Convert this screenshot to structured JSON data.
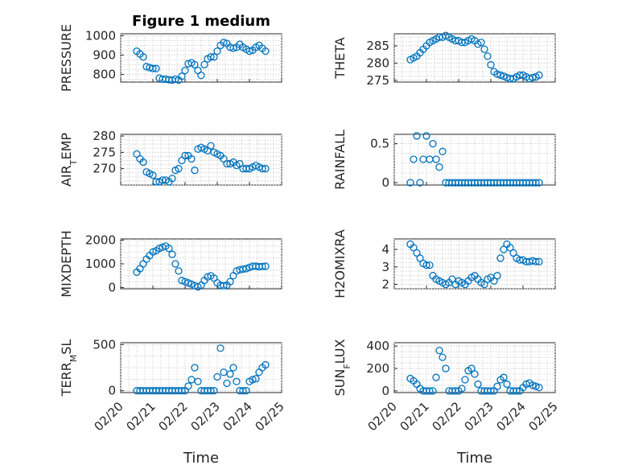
{
  "figure_title": "Figure 1 medium",
  "x_label": "Time",
  "x_ticks": [
    "02/20",
    "02/21",
    "02/22",
    "02/23",
    "02/24",
    "02/25"
  ],
  "marker_color": "#0072BD",
  "chart_data": [
    {
      "type": "scatter",
      "ylabel_main": "PRESSURE",
      "ylabel_sub": "",
      "ylabel_tail": "",
      "yticks": [
        "800",
        "900",
        "1000"
      ],
      "ylim": [
        760,
        1010
      ],
      "xlim": [
        0,
        5
      ],
      "x": [
        0.5,
        0.6,
        0.7,
        0.8,
        0.9,
        1.0,
        1.1,
        1.2,
        1.3,
        1.4,
        1.5,
        1.6,
        1.7,
        1.8,
        1.9,
        2.0,
        2.1,
        2.2,
        2.3,
        2.4,
        2.5,
        2.6,
        2.7,
        2.8,
        2.9,
        3.0,
        3.1,
        3.2,
        3.3,
        3.4,
        3.5,
        3.6,
        3.7,
        3.8,
        3.9,
        4.0,
        4.1,
        4.2,
        4.3,
        4.4,
        4.5
      ],
      "y": [
        920,
        905,
        890,
        840,
        835,
        830,
        830,
        780,
        775,
        775,
        772,
        770,
        775,
        770,
        790,
        820,
        855,
        860,
        850,
        820,
        795,
        850,
        880,
        890,
        890,
        920,
        950,
        965,
        960,
        940,
        935,
        940,
        955,
        940,
        930,
        920,
        925,
        940,
        950,
        935,
        920
      ]
    },
    {
      "type": "scatter",
      "ylabel_main": "THETA",
      "ylabel_sub": "",
      "ylabel_tail": "",
      "yticks": [
        "275",
        "280",
        "285"
      ],
      "ylim": [
        274.5,
        288.5
      ],
      "xlim": [
        0,
        5
      ],
      "x": [
        0.5,
        0.6,
        0.7,
        0.8,
        0.9,
        1.0,
        1.1,
        1.2,
        1.3,
        1.4,
        1.5,
        1.6,
        1.7,
        1.8,
        1.9,
        2.0,
        2.1,
        2.2,
        2.3,
        2.4,
        2.5,
        2.6,
        2.7,
        2.8,
        2.9,
        3.0,
        3.1,
        3.2,
        3.3,
        3.4,
        3.5,
        3.6,
        3.7,
        3.8,
        3.9,
        4.0,
        4.1,
        4.2,
        4.3,
        4.4,
        4.5
      ],
      "y": [
        281,
        281.5,
        282,
        283,
        284,
        285,
        286,
        286.5,
        287,
        287.5,
        287.5,
        288,
        287.5,
        287,
        286.5,
        286.5,
        286,
        286,
        286.5,
        287,
        286.5,
        285.5,
        286,
        284,
        282,
        279.5,
        277.5,
        276.8,
        276.5,
        276.2,
        275.8,
        275.5,
        275.5,
        276,
        276.5,
        276.5,
        276,
        275.5,
        275.8,
        276,
        276.5
      ]
    },
    {
      "type": "scatter",
      "ylabel_main": "AIR",
      "ylabel_sub": "T",
      "ylabel_tail": "EMP",
      "yticks": [
        "270",
        "275",
        "280"
      ],
      "ylim": [
        265,
        280.5
      ],
      "xlim": [
        0,
        5
      ],
      "x": [
        0.5,
        0.6,
        0.7,
        0.8,
        0.9,
        1.0,
        1.1,
        1.2,
        1.3,
        1.4,
        1.5,
        1.6,
        1.7,
        1.8,
        1.9,
        2.0,
        2.1,
        2.2,
        2.3,
        2.4,
        2.5,
        2.6,
        2.7,
        2.8,
        2.9,
        3.0,
        3.1,
        3.2,
        3.3,
        3.4,
        3.5,
        3.6,
        3.7,
        3.8,
        3.9,
        4.0,
        4.1,
        4.2,
        4.3,
        4.4,
        4.5
      ],
      "y": [
        274.5,
        273,
        272,
        269,
        268.5,
        268,
        266,
        266,
        266.5,
        266.5,
        266,
        267,
        269.5,
        270,
        272.5,
        274,
        274,
        273,
        269.5,
        276,
        276.5,
        276,
        275.5,
        277,
        275,
        274.5,
        274,
        273,
        271.5,
        271.5,
        272,
        271,
        271.5,
        270,
        270,
        270,
        270.5,
        271,
        270.5,
        270,
        270
      ]
    },
    {
      "type": "scatter",
      "ylabel_main": "RAINFALL",
      "ylabel_sub": "",
      "ylabel_tail": "",
      "yticks": [
        "0",
        "0.5"
      ],
      "ylim": [
        -0.03,
        0.62
      ],
      "xlim": [
        0,
        5
      ],
      "x": [
        0.5,
        0.6,
        0.7,
        0.8,
        0.9,
        1.0,
        1.1,
        1.2,
        1.3,
        1.4,
        1.5,
        1.6,
        1.7,
        1.8,
        1.9,
        2.0,
        2.1,
        2.2,
        2.3,
        2.4,
        2.5,
        2.6,
        2.7,
        2.8,
        2.9,
        3.0,
        3.1,
        3.2,
        3.3,
        3.4,
        3.5,
        3.6,
        3.7,
        3.8,
        3.9,
        4.0,
        4.1,
        4.2,
        4.3,
        4.4,
        4.5
      ],
      "y": [
        0,
        0.3,
        0.6,
        0,
        0.3,
        0.6,
        0.3,
        0.5,
        0.3,
        0.2,
        0.4,
        0,
        0,
        0,
        0,
        0,
        0,
        0,
        0,
        0,
        0,
        0,
        0,
        0,
        0,
        0,
        0,
        0,
        0,
        0,
        0,
        0,
        0,
        0,
        0,
        0,
        0,
        0,
        0,
        0,
        0
      ]
    },
    {
      "type": "scatter",
      "ylabel_main": "MIXDEPTH",
      "ylabel_sub": "",
      "ylabel_tail": "",
      "yticks": [
        "0",
        "1000",
        "2000"
      ],
      "ylim": [
        -50,
        2050
      ],
      "xlim": [
        0,
        5
      ],
      "x": [
        0.5,
        0.6,
        0.7,
        0.8,
        0.9,
        1.0,
        1.1,
        1.2,
        1.3,
        1.4,
        1.5,
        1.6,
        1.7,
        1.8,
        1.9,
        2.0,
        2.1,
        2.2,
        2.3,
        2.4,
        2.5,
        2.6,
        2.7,
        2.8,
        2.9,
        3.0,
        3.1,
        3.2,
        3.3,
        3.4,
        3.5,
        3.6,
        3.7,
        3.8,
        3.9,
        4.0,
        4.1,
        4.2,
        4.3,
        4.4,
        4.5
      ],
      "y": [
        650,
        800,
        1000,
        1200,
        1350,
        1500,
        1550,
        1650,
        1700,
        1750,
        1650,
        1400,
        1000,
        700,
        300,
        250,
        200,
        150,
        80,
        30,
        100,
        300,
        450,
        500,
        400,
        200,
        100,
        80,
        100,
        250,
        500,
        700,
        750,
        780,
        800,
        850,
        900,
        900,
        880,
        890,
        900
      ]
    },
    {
      "type": "scatter",
      "ylabel_main": "H2OMIXRA",
      "ylabel_sub": "",
      "ylabel_tail": "",
      "yticks": [
        "2",
        "3",
        "4"
      ],
      "ylim": [
        1.75,
        4.6
      ],
      "xlim": [
        0,
        5
      ],
      "x": [
        0.5,
        0.6,
        0.7,
        0.8,
        0.9,
        1.0,
        1.1,
        1.2,
        1.3,
        1.4,
        1.5,
        1.6,
        1.7,
        1.8,
        1.9,
        2.0,
        2.1,
        2.2,
        2.3,
        2.4,
        2.5,
        2.6,
        2.7,
        2.8,
        2.9,
        3.0,
        3.1,
        3.2,
        3.3,
        3.4,
        3.5,
        3.6,
        3.7,
        3.8,
        3.9,
        4.0,
        4.1,
        4.2,
        4.3,
        4.4,
        4.5
      ],
      "y": [
        4.3,
        4.1,
        3.8,
        3.5,
        3.2,
        3.1,
        3.1,
        2.5,
        2.3,
        2.2,
        2.1,
        2.0,
        2.1,
        2.3,
        2.0,
        2.2,
        2.1,
        2.0,
        2.2,
        2.4,
        2.5,
        2.3,
        2.1,
        2.0,
        2.3,
        2.4,
        2.2,
        2.5,
        3.5,
        4.0,
        4.3,
        4.1,
        3.8,
        3.5,
        3.4,
        3.4,
        3.3,
        3.3,
        3.35,
        3.3,
        3.3
      ]
    },
    {
      "type": "scatter",
      "ylabel_main": "TERR",
      "ylabel_sub": "M",
      "ylabel_tail": "SL",
      "yticks": [
        "0",
        "500"
      ],
      "ylim": [
        -20,
        520
      ],
      "xlim": [
        0,
        5
      ],
      "x": [
        0.5,
        0.6,
        0.7,
        0.8,
        0.9,
        1.0,
        1.1,
        1.2,
        1.3,
        1.4,
        1.5,
        1.6,
        1.7,
        1.8,
        1.9,
        2.0,
        2.1,
        2.2,
        2.3,
        2.4,
        2.5,
        2.6,
        2.7,
        2.8,
        2.9,
        3.0,
        3.1,
        3.2,
        3.3,
        3.4,
        3.5,
        3.6,
        3.7,
        3.8,
        3.9,
        4.0,
        4.1,
        4.2,
        4.3,
        4.4,
        4.5
      ],
      "y": [
        0,
        0,
        0,
        0,
        0,
        0,
        0,
        0,
        0,
        0,
        0,
        0,
        0,
        0,
        0,
        0,
        50,
        120,
        250,
        100,
        0,
        0,
        0,
        0,
        0,
        150,
        460,
        200,
        80,
        180,
        250,
        100,
        0,
        0,
        0,
        100,
        120,
        130,
        200,
        250,
        280
      ]
    },
    {
      "type": "scatter",
      "ylabel_main": "SUN",
      "ylabel_sub": "F",
      "ylabel_tail": "LUX",
      "yticks": [
        "0",
        "200",
        "400"
      ],
      "ylim": [
        -15,
        430
      ],
      "xlim": [
        0,
        5
      ],
      "x": [
        0.5,
        0.6,
        0.7,
        0.8,
        0.9,
        1.0,
        1.1,
        1.2,
        1.3,
        1.4,
        1.5,
        1.6,
        1.7,
        1.8,
        1.9,
        2.0,
        2.1,
        2.2,
        2.3,
        2.4,
        2.5,
        2.6,
        2.7,
        2.8,
        2.9,
        3.0,
        3.1,
        3.2,
        3.3,
        3.4,
        3.5,
        3.6,
        3.7,
        3.8,
        3.9,
        4.0,
        4.1,
        4.2,
        4.3,
        4.4,
        4.5
      ],
      "y": [
        110,
        90,
        60,
        20,
        0,
        0,
        0,
        0,
        120,
        360,
        300,
        200,
        0,
        0,
        0,
        0,
        20,
        100,
        180,
        200,
        150,
        60,
        0,
        0,
        0,
        0,
        0,
        40,
        100,
        120,
        60,
        0,
        0,
        0,
        0,
        30,
        60,
        70,
        50,
        40,
        30
      ]
    }
  ]
}
